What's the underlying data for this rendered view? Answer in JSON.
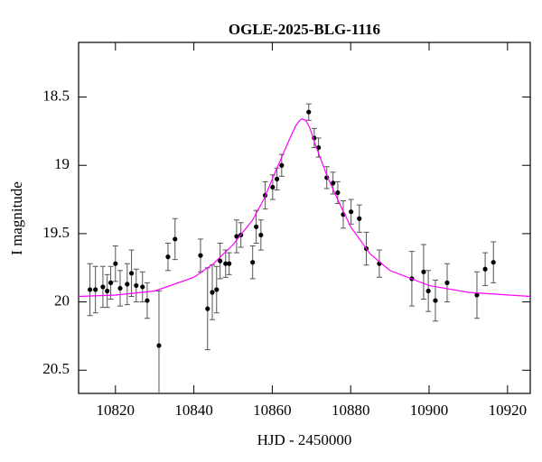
{
  "chart_data": {
    "type": "scatter",
    "title": "OGLE-2025-BLG-1116",
    "x_label": "HJD - 2450000",
    "y_label": "I magnitude",
    "xlim": [
      10810.6,
      10925.8
    ],
    "ylim": [
      20.67,
      18.1
    ],
    "xticks": [
      10820,
      10840,
      10860,
      10880,
      10900,
      10920
    ],
    "yticks": [
      18.5,
      19,
      19.5,
      20,
      20.5
    ],
    "series": [
      {
        "type": "scatter",
        "color": "#000000",
        "x": [
          10813.5,
          10814.9,
          10816.8,
          10817.9,
          10818.8,
          10820,
          10821.2,
          10823,
          10824.1,
          10825.3,
          10826.9,
          10828.1,
          10831.1,
          10833.4,
          10835.2,
          10841.7,
          10843.5,
          10844.7,
          10845.8,
          10846.7,
          10848.1,
          10849,
          10850.9,
          10852,
          10855,
          10855.9,
          10857.1,
          10858.2,
          10860.1,
          10861.2,
          10862.4,
          10869.3,
          10870.7,
          10871.8,
          10873.9,
          10875.5,
          10876.7,
          10878.1,
          10880.1,
          10882.2,
          10884,
          10887.3,
          10895.6,
          10898.6,
          10899.8,
          10901.6,
          10904.6,
          10912.2,
          10914.3,
          10916.4
        ],
        "y": [
          19.91,
          19.91,
          19.89,
          19.92,
          19.86,
          19.72,
          19.9,
          19.87,
          19.79,
          19.88,
          19.89,
          19.99,
          20.32,
          19.67,
          19.54,
          19.66,
          20.05,
          19.93,
          19.91,
          19.7,
          19.72,
          19.72,
          19.52,
          19.51,
          19.71,
          19.45,
          19.51,
          19.22,
          19.16,
          19.1,
          19.0,
          18.61,
          18.8,
          18.87,
          19.09,
          19.13,
          19.2,
          19.36,
          19.34,
          19.39,
          19.61,
          19.72,
          19.83,
          19.78,
          19.92,
          19.99,
          19.86,
          19.95,
          19.76,
          19.71
        ],
        "errors": [
          0.19,
          0.17,
          0.15,
          0.12,
          0.12,
          0.13,
          0.13,
          0.15,
          0.17,
          0.12,
          0.11,
          0.13,
          0.4,
          0.1,
          0.15,
          0.12,
          0.3,
          0.2,
          0.17,
          0.13,
          0.1,
          0.08,
          0.12,
          0.09,
          0.12,
          0.12,
          0.11,
          0.1,
          0.09,
          0.08,
          0.08,
          0.06,
          0.07,
          0.07,
          0.08,
          0.08,
          0.08,
          0.1,
          0.09,
          0.1,
          0.12,
          0.1,
          0.2,
          0.2,
          0.15,
          0.15,
          0.14,
          0.17,
          0.12,
          0.15
        ]
      },
      {
        "type": "line",
        "color": "#ff00ff",
        "x": [
          10810.6,
          10820,
          10830,
          10840,
          10845,
          10850,
          10855,
          10858,
          10860,
          10863,
          10865,
          10866,
          10867,
          10867.6,
          10868.5,
          10869.5,
          10871,
          10874,
          10877,
          10880,
          10885,
          10890,
          10900,
          10910,
          10925.8
        ],
        "y": [
          19.96,
          19.95,
          19.92,
          19.82,
          19.72,
          19.58,
          19.4,
          19.24,
          19.1,
          18.9,
          18.77,
          18.71,
          18.67,
          18.66,
          18.67,
          18.72,
          18.85,
          19.08,
          19.27,
          19.45,
          19.65,
          19.77,
          19.88,
          19.93,
          19.96
        ]
      }
    ]
  }
}
